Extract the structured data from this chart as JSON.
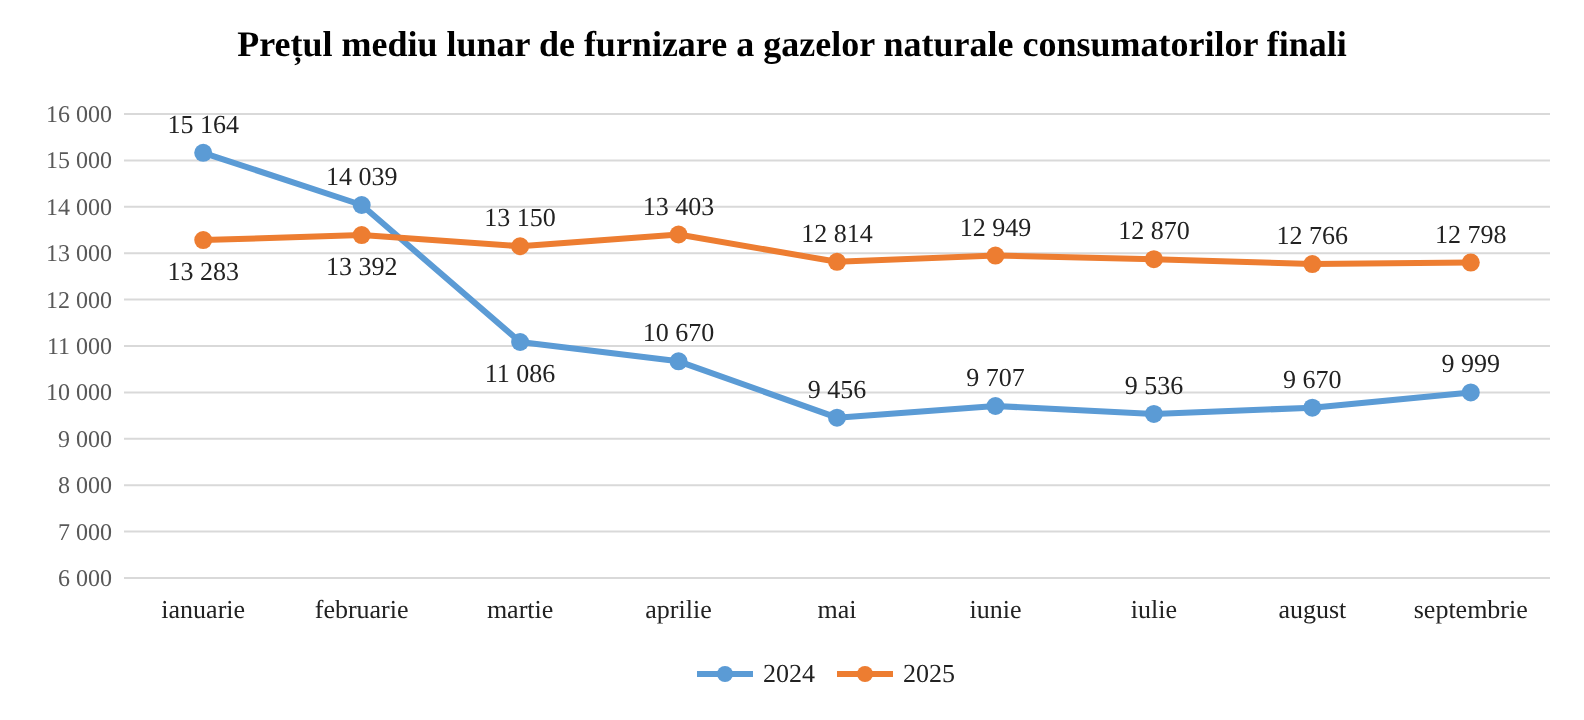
{
  "chart_data": {
    "type": "line",
    "title": "Prețul mediu lunar de furnizare a gazelor naturale consumatorilor finali",
    "categories": [
      "ianuarie",
      "februarie",
      "martie",
      "aprilie",
      "mai",
      "iunie",
      "iulie",
      "august",
      "septembrie"
    ],
    "series": [
      {
        "name": "2024",
        "color": "#5b9bd5",
        "values": [
          15164,
          14039,
          11086,
          10670,
          9456,
          9707,
          9536,
          9670,
          9999
        ],
        "value_labels": [
          "15 164",
          "14 039",
          "11 086",
          "10 670",
          "9 456",
          "9 707",
          "9 536",
          "9 670",
          "9 999"
        ]
      },
      {
        "name": "2025",
        "color": "#ed7d31",
        "values": [
          13283,
          13392,
          13150,
          13403,
          12814,
          12949,
          12870,
          12766,
          12798
        ],
        "value_labels": [
          "13 283",
          "13 392",
          "13 150",
          "13 403",
          "12 814",
          "12 949",
          "12 870",
          "12 766",
          "12 798"
        ]
      }
    ],
    "ylim": [
      6000,
      16000
    ],
    "yticks": [
      {
        "value": 6000,
        "label": "6 000"
      },
      {
        "value": 7000,
        "label": "7 000"
      },
      {
        "value": 8000,
        "label": "8 000"
      },
      {
        "value": 9000,
        "label": "9 000"
      },
      {
        "value": 10000,
        "label": "10 000"
      },
      {
        "value": 11000,
        "label": "11 000"
      },
      {
        "value": 12000,
        "label": "12 000"
      },
      {
        "value": 13000,
        "label": "13 000"
      },
      {
        "value": 14000,
        "label": "14 000"
      },
      {
        "value": 15000,
        "label": "15 000"
      },
      {
        "value": 16000,
        "label": "16 000"
      }
    ],
    "grid": "y",
    "legend": "bottom",
    "marker": "circle",
    "line_style": "solid"
  }
}
